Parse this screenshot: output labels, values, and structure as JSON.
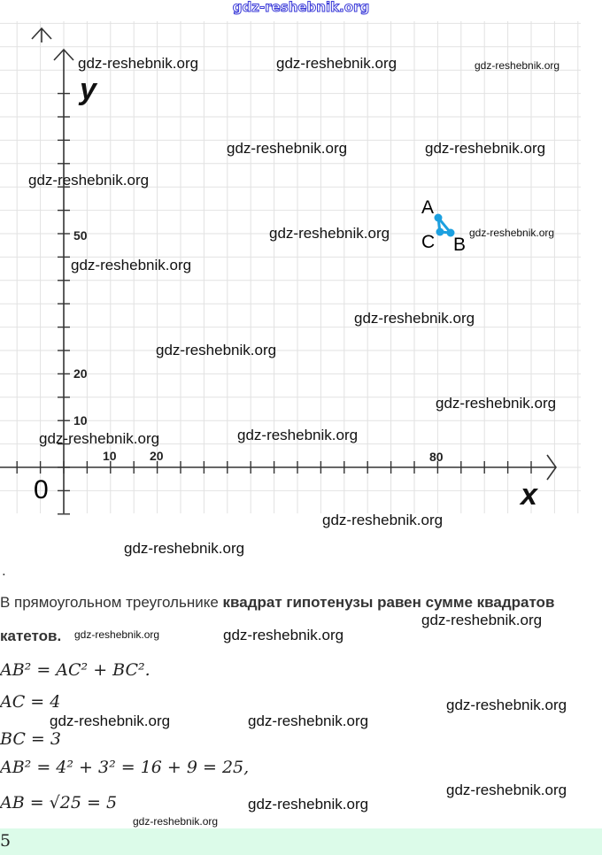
{
  "header": {
    "site": "gdz-reshebnik.org"
  },
  "watermark": "gdz-reshebnik.org",
  "graph": {
    "axis_x_label": "x",
    "axis_y_label": "y",
    "origin_label": "0",
    "x_ticks": [
      "10",
      "20",
      "80"
    ],
    "y_ticks": [
      "50",
      "20",
      "10"
    ],
    "points": [
      {
        "label": "A"
      },
      {
        "label": "B"
      },
      {
        "label": "C"
      }
    ],
    "triangle_color": "#1ca0e0"
  },
  "solution": {
    "dot": ".",
    "text_normal": "В прямоугольном треугольнике ",
    "text_bold1": "квадрат гипотенузы равен сумме квадратов",
    "text_bold2": "катетов.",
    "f1": "AB² = AC² + BC².",
    "f2": "AC = 4",
    "f3": "BC = 3",
    "f4": "AB² = 4² + 3² = 16 + 9 = 25,",
    "f5": "AB = √25 = 5",
    "answer": "5"
  }
}
